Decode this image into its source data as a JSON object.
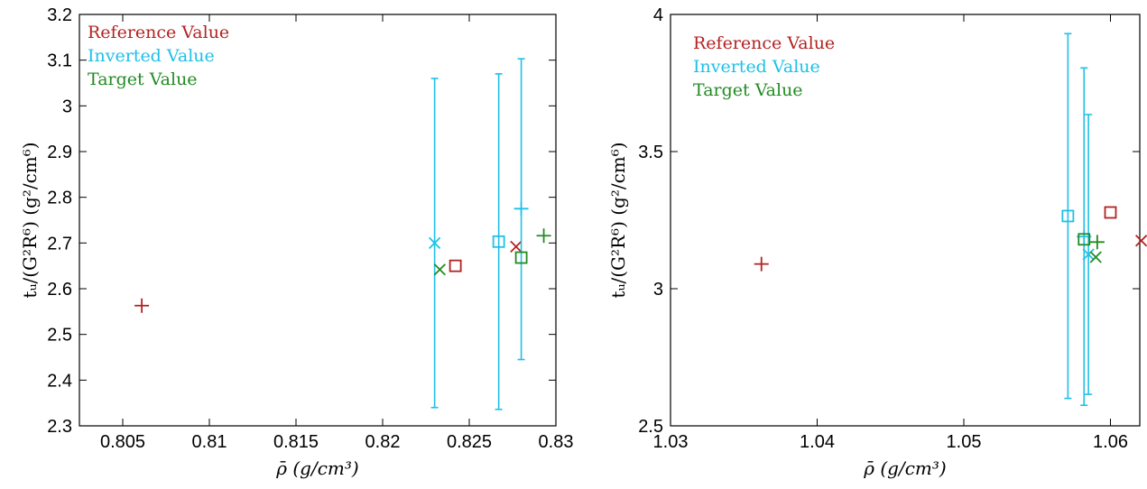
{
  "chart_data": [
    {
      "type": "scatter",
      "xlabel": "ρ̄ (g/cm³)",
      "ylabel": "tᵤ/(G²R⁶) (g²/cm⁶)",
      "xlim": [
        0.8025,
        0.83
      ],
      "ylim": [
        2.3,
        3.2
      ],
      "xticks": [
        "0.805",
        "0.81",
        "0.815",
        "0.82",
        "0.825",
        "0.83"
      ],
      "yticks": [
        "2.3",
        "2.4",
        "2.5",
        "2.6",
        "2.7",
        "2.8",
        "2.9",
        "3",
        "3.1",
        "3.2"
      ],
      "legend": {
        "position": "top-left",
        "boxed": false
      },
      "series": [
        {
          "name": "Reference Value",
          "color": "#b22222",
          "points": [
            {
              "marker": "plus",
              "x": 0.8061,
              "y": 2.563
            },
            {
              "marker": "square",
              "x": 0.8242,
              "y": 2.65
            },
            {
              "marker": "cross",
              "x": 0.8277,
              "y": 2.692
            }
          ]
        },
        {
          "name": "Inverted Value",
          "color": "#1ec0e8",
          "points": [
            {
              "marker": "cross",
              "x": 0.823,
              "y": 2.7,
              "ylow": 2.34,
              "yhigh": 3.06
            },
            {
              "marker": "square",
              "x": 0.8267,
              "y": 2.703,
              "ylow": 2.336,
              "yhigh": 3.07
            },
            {
              "marker": "plus",
              "x": 0.828,
              "y": 2.775,
              "ylow": 2.445,
              "yhigh": 3.103
            }
          ]
        },
        {
          "name": "Target Value",
          "color": "#228b22",
          "points": [
            {
              "marker": "cross",
              "x": 0.8233,
              "y": 2.642
            },
            {
              "marker": "square",
              "x": 0.828,
              "y": 2.668
            },
            {
              "marker": "plus",
              "x": 0.8293,
              "y": 2.716
            }
          ]
        }
      ]
    },
    {
      "type": "scatter",
      "xlabel": "ρ̄ (g/cm³)",
      "ylabel": "tᵤ/(G²R⁶) (g²/cm⁶)",
      "xlim": [
        1.03,
        1.062
      ],
      "ylim": [
        2.5,
        4
      ],
      "xticks": [
        "1.03",
        "1.04",
        "1.05",
        "1.06"
      ],
      "yticks": [
        "2.5",
        "3",
        "3.5",
        "4"
      ],
      "legend": {
        "position": "top-left",
        "boxed": false
      },
      "series": [
        {
          "name": "Reference Value",
          "color": "#b22222",
          "points": [
            {
              "marker": "plus",
              "x": 1.0362,
              "y": 3.09
            },
            {
              "marker": "square",
              "x": 1.06,
              "y": 3.278
            },
            {
              "marker": "cross",
              "x": 1.0621,
              "y": 3.175
            }
          ]
        },
        {
          "name": "Inverted Value",
          "color": "#1ec0e8",
          "points": [
            {
              "marker": "square",
              "x": 1.0571,
              "y": 3.265,
              "ylow": 2.6,
              "yhigh": 3.93
            },
            {
              "marker": "plus",
              "x": 1.0582,
              "y": 3.19,
              "ylow": 2.575,
              "yhigh": 3.805
            },
            {
              "marker": "cross",
              "x": 1.0585,
              "y": 3.125,
              "ylow": 2.615,
              "yhigh": 3.635
            }
          ]
        },
        {
          "name": "Target Value",
          "color": "#228b22",
          "points": [
            {
              "marker": "square",
              "x": 1.0582,
              "y": 3.18
            },
            {
              "marker": "plus",
              "x": 1.0591,
              "y": 3.17
            },
            {
              "marker": "cross",
              "x": 1.059,
              "y": 3.115
            }
          ]
        }
      ]
    }
  ]
}
